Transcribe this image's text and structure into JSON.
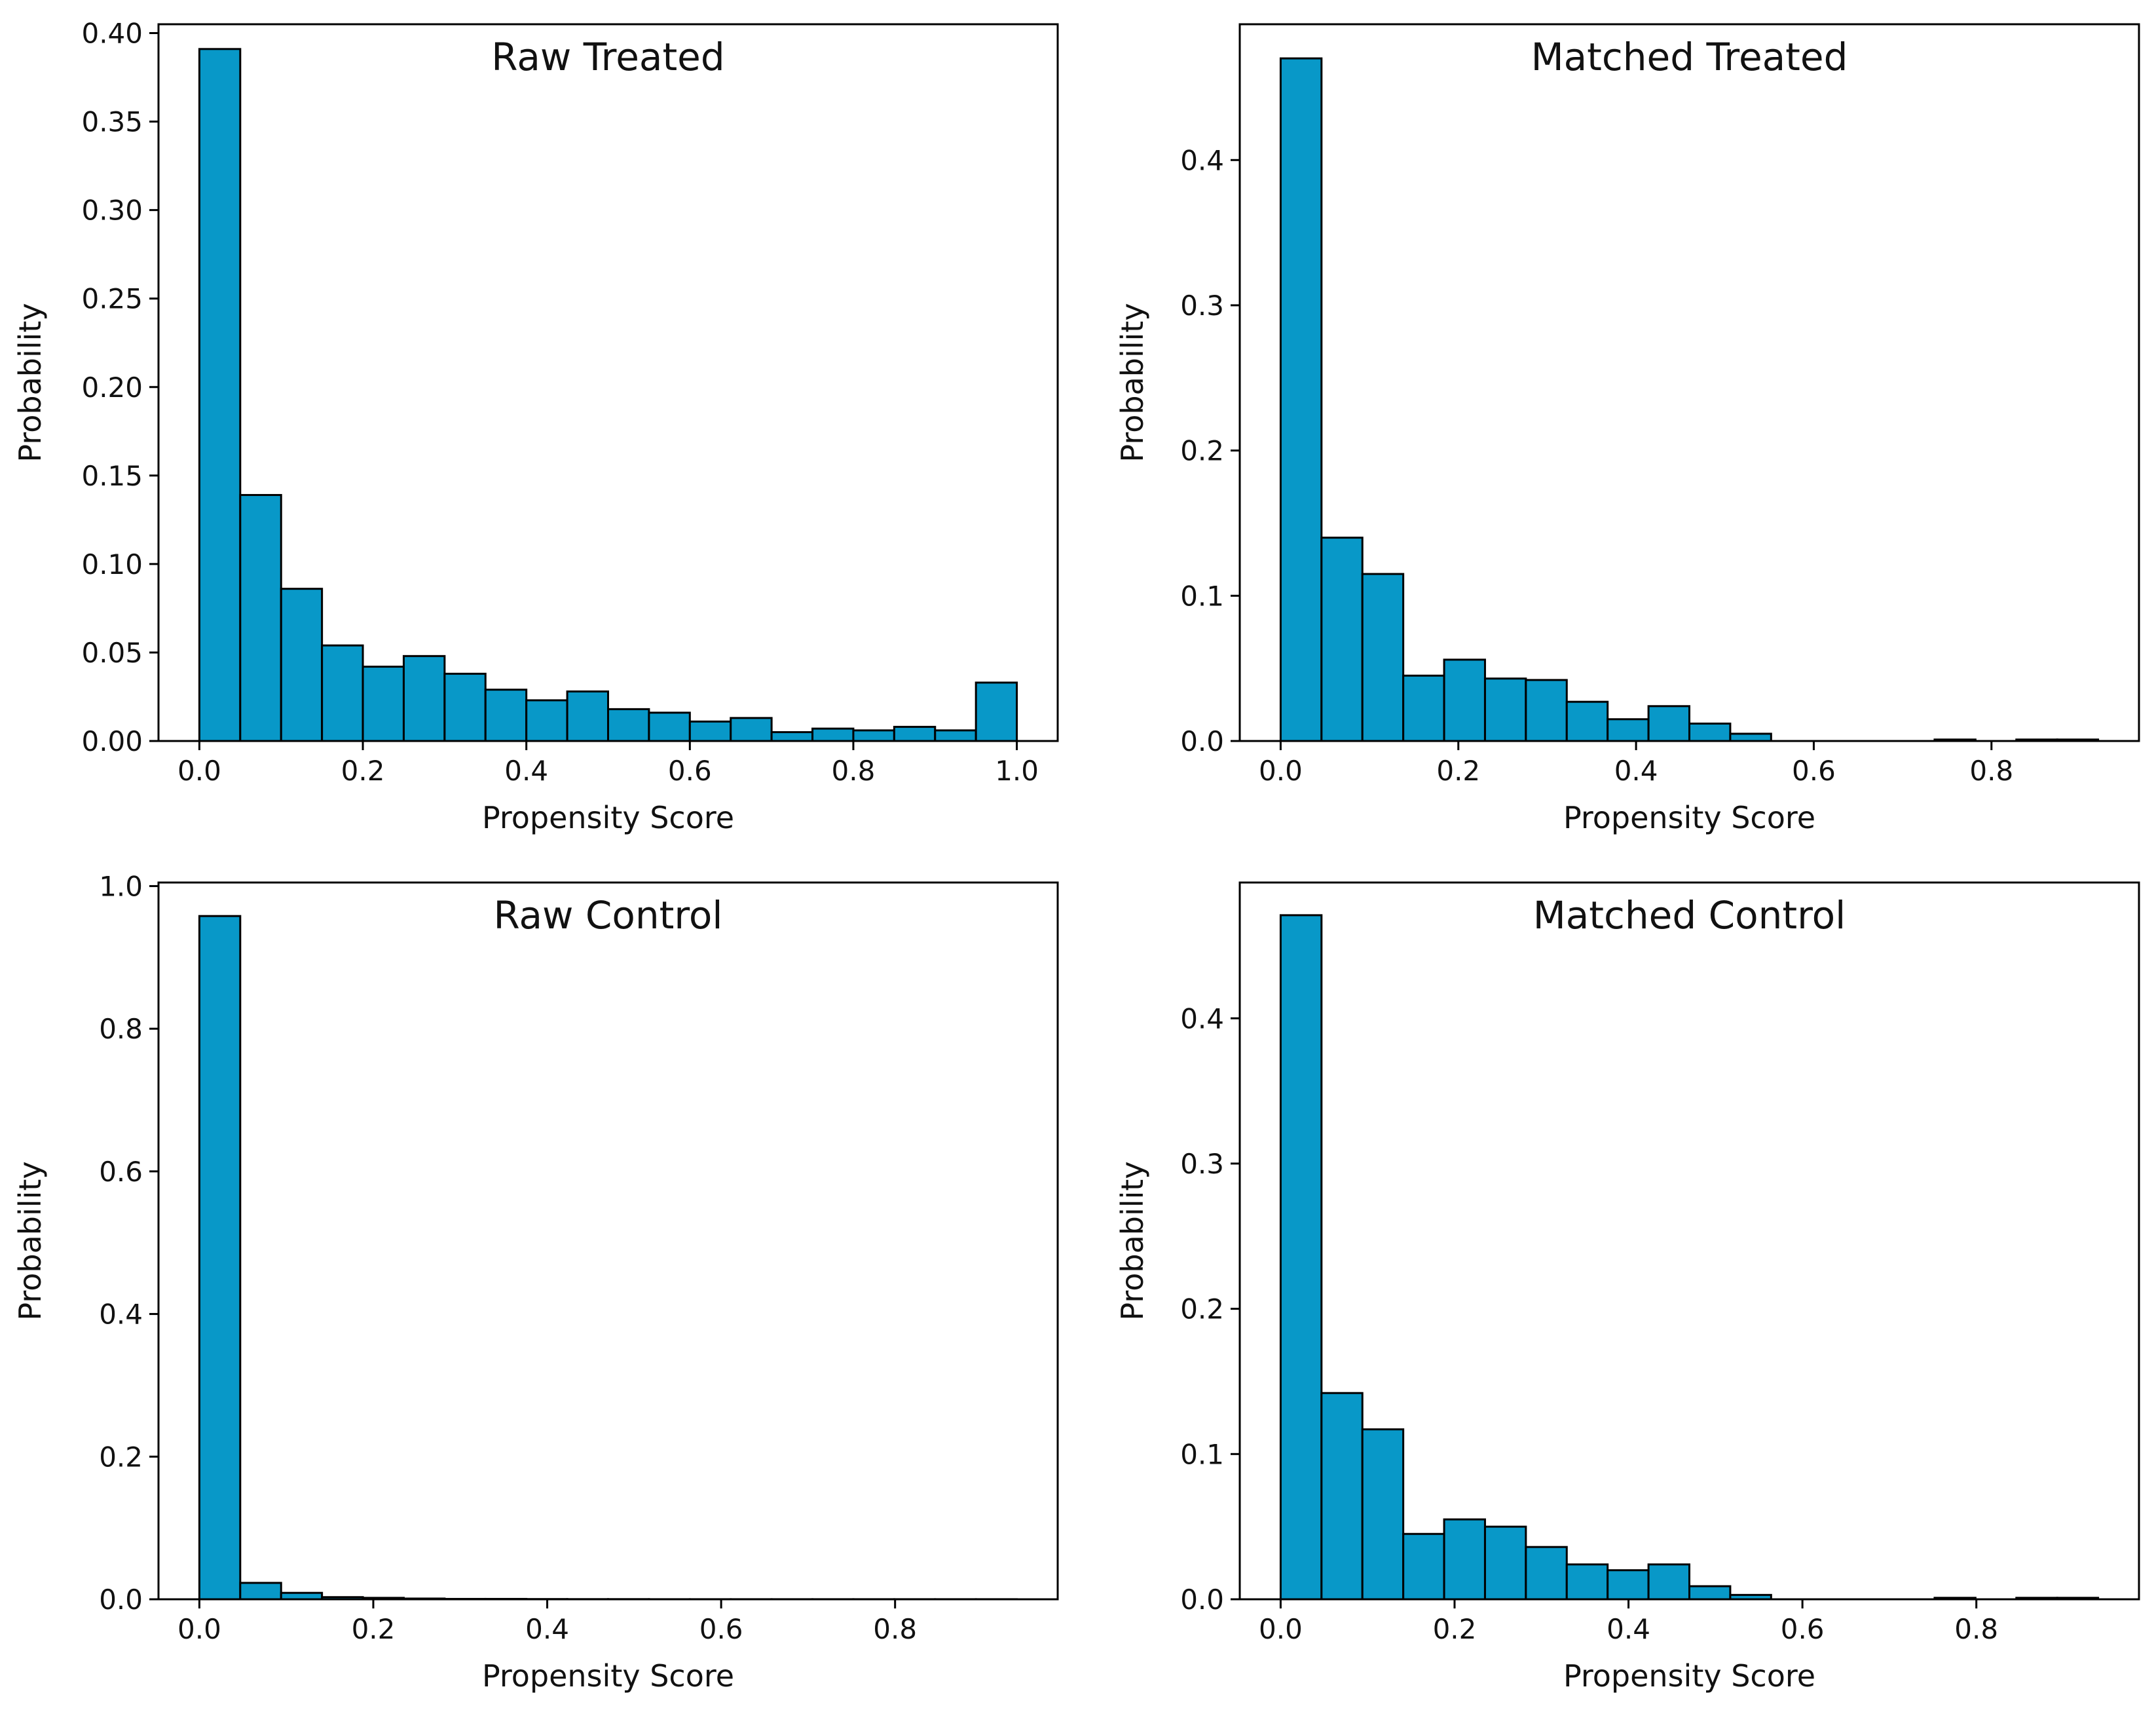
{
  "colors": {
    "bar_fill": "#0898c8",
    "bar_edge": "#000000"
  },
  "chart_data": [
    {
      "type": "bar",
      "title": "Raw Treated",
      "xlabel": "Propensity Score",
      "ylabel": "Probability",
      "bin_start": 0.0,
      "bin_width": 0.05,
      "values": [
        0.391,
        0.139,
        0.086,
        0.054,
        0.042,
        0.048,
        0.038,
        0.029,
        0.023,
        0.028,
        0.018,
        0.016,
        0.011,
        0.013,
        0.005,
        0.007,
        0.006,
        0.008,
        0.006,
        0.033
      ],
      "xlim": [
        -0.05,
        1.05
      ],
      "ylim": [
        0,
        0.405
      ],
      "xticks": [
        0.0,
        0.2,
        0.4,
        0.6,
        0.8,
        1.0
      ],
      "xticklabels": [
        "0.0",
        "0.2",
        "0.4",
        "0.6",
        "0.8",
        "1.0"
      ],
      "yticks": [
        0.0,
        0.05,
        0.1,
        0.15,
        0.2,
        0.25,
        0.3,
        0.35,
        0.4
      ],
      "yticklabels": [
        "0.00",
        "0.05",
        "0.10",
        "0.15",
        "0.20",
        "0.25",
        "0.30",
        "0.35",
        "0.40"
      ]
    },
    {
      "type": "bar",
      "title": "Matched Treated",
      "xlabel": "Propensity Score",
      "ylabel": "Probability",
      "bin_start": 0.0,
      "bin_width": 0.046,
      "values": [
        0.47,
        0.14,
        0.115,
        0.045,
        0.056,
        0.043,
        0.042,
        0.027,
        0.015,
        0.024,
        0.012,
        0.005,
        0.0,
        0.0,
        0.0,
        0.0,
        0.001,
        0.0,
        0.001,
        0.001
      ],
      "xlim": [
        -0.046,
        0.966
      ],
      "ylim": [
        0,
        0.4935
      ],
      "xticks": [
        0.0,
        0.2,
        0.4,
        0.6,
        0.8
      ],
      "xticklabels": [
        "0.0",
        "0.2",
        "0.4",
        "0.6",
        "0.8"
      ],
      "yticks": [
        0.0,
        0.1,
        0.2,
        0.3,
        0.4
      ],
      "yticklabels": [
        "0.0",
        "0.1",
        "0.2",
        "0.3",
        "0.4"
      ]
    },
    {
      "type": "bar",
      "title": "Raw Control",
      "xlabel": "Propensity Score",
      "ylabel": "Probability",
      "bin_start": 0.0,
      "bin_width": 0.047,
      "values": [
        0.958,
        0.023,
        0.009,
        0.003,
        0.002,
        0.001,
        0.0005,
        0.0005,
        0.0003,
        0.0002,
        0.0002,
        0.0001,
        0.0001,
        0.0001,
        0.0001,
        0.0001,
        0.0001,
        0.0001,
        0.0001,
        0.0001
      ],
      "xlim": [
        -0.047,
        0.987
      ],
      "ylim": [
        0,
        1.005
      ],
      "xticks": [
        0.0,
        0.2,
        0.4,
        0.6,
        0.8
      ],
      "xticklabels": [
        "0.0",
        "0.2",
        "0.4",
        "0.6",
        "0.8"
      ],
      "yticks": [
        0.0,
        0.2,
        0.4,
        0.6,
        0.8,
        1.0
      ],
      "yticklabels": [
        "0.0",
        "0.2",
        "0.4",
        "0.6",
        "0.8",
        "1.0"
      ]
    },
    {
      "type": "bar",
      "title": "Matched Control",
      "xlabel": "Propensity Score",
      "ylabel": "Probability",
      "bin_start": 0.0,
      "bin_width": 0.047,
      "values": [
        0.471,
        0.142,
        0.117,
        0.045,
        0.055,
        0.05,
        0.036,
        0.024,
        0.02,
        0.024,
        0.009,
        0.003,
        0.0,
        0.0,
        0.0,
        0.0,
        0.001,
        0.0,
        0.001,
        0.001
      ],
      "xlim": [
        -0.047,
        0.987
      ],
      "ylim": [
        0,
        0.4935
      ],
      "xticks": [
        0.0,
        0.2,
        0.4,
        0.6,
        0.8
      ],
      "xticklabels": [
        "0.0",
        "0.2",
        "0.4",
        "0.6",
        "0.8"
      ],
      "yticks": [
        0.0,
        0.1,
        0.2,
        0.3,
        0.4
      ],
      "yticklabels": [
        "0.0",
        "0.1",
        "0.2",
        "0.3",
        "0.4"
      ]
    }
  ]
}
